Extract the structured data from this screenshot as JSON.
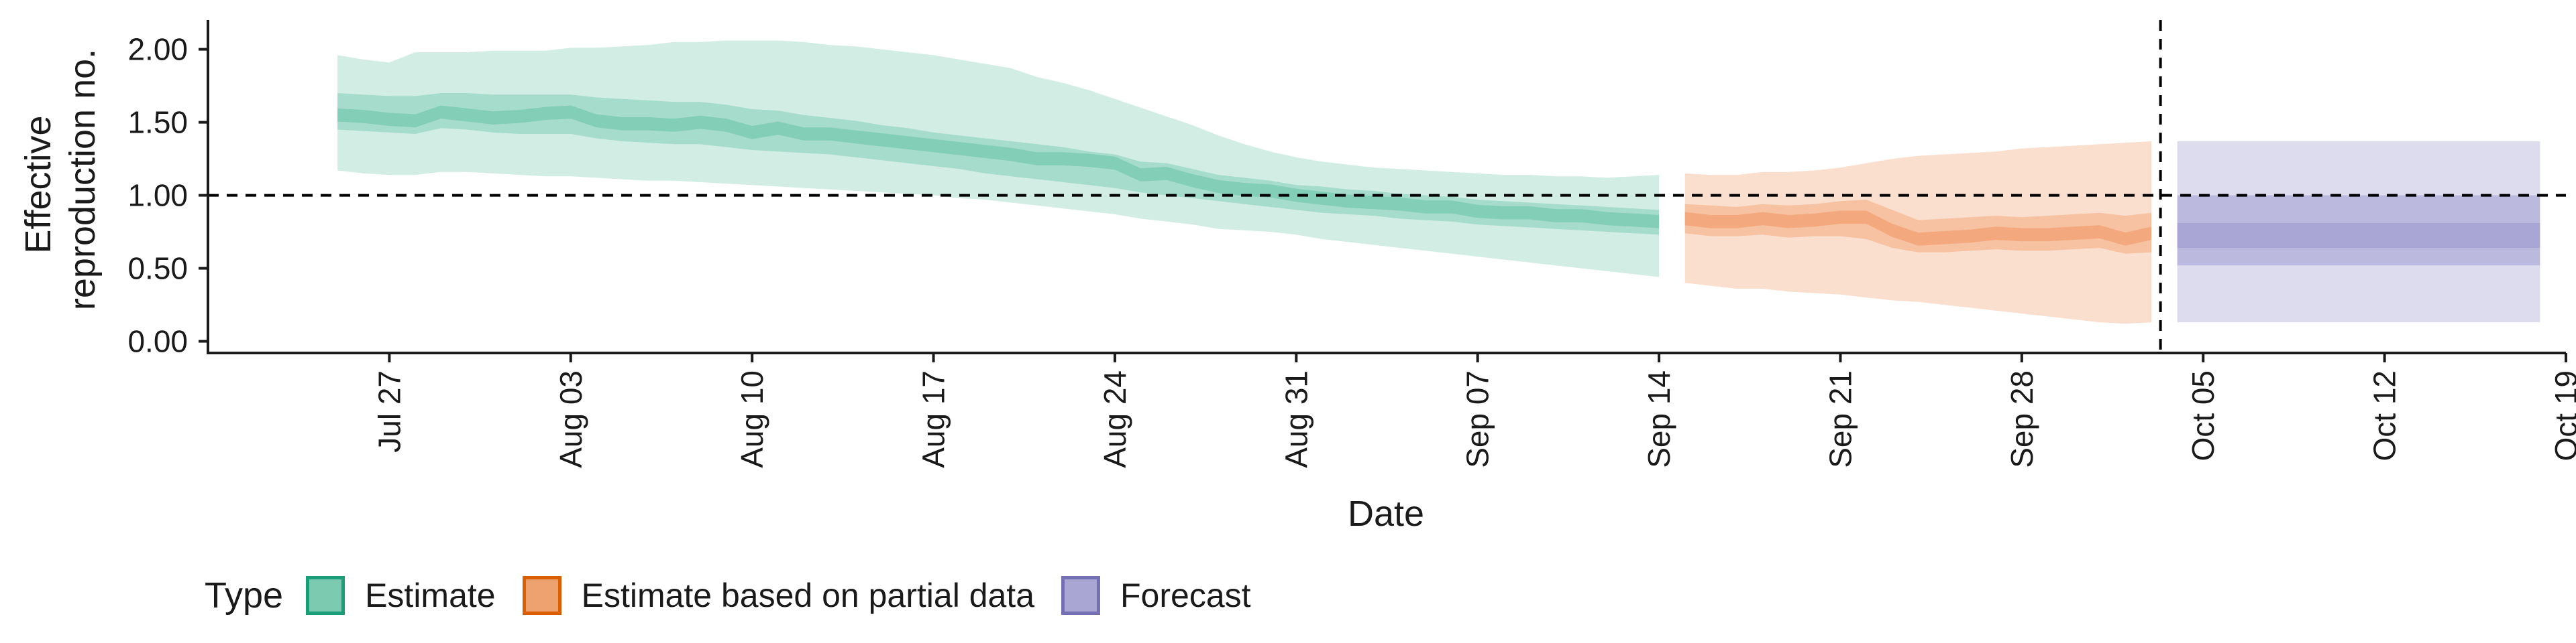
{
  "chart_data": {
    "type": "area",
    "xlabel": "Date",
    "ylabel_lines": [
      "Effective",
      "reproduction no."
    ],
    "ylim": [
      -0.08,
      2.2
    ],
    "yticks": [
      0.0,
      0.5,
      1.0,
      1.5,
      2.0
    ],
    "ytick_labels": [
      "0.00",
      "0.50",
      "1.00",
      "1.50",
      "2.00"
    ],
    "xlim": [
      "2020-07-20",
      "2020-10-19"
    ],
    "xticks": [
      "2020-07-27",
      "2020-08-03",
      "2020-08-10",
      "2020-08-17",
      "2020-08-24",
      "2020-08-31",
      "2020-09-07",
      "2020-09-14",
      "2020-09-21",
      "2020-09-28",
      "2020-10-05",
      "2020-10-12",
      "2020-10-19"
    ],
    "xtick_labels": [
      "Jul 27",
      "Aug 03",
      "Aug 10",
      "Aug 17",
      "Aug 24",
      "Aug 31",
      "Sep 07",
      "Sep 14",
      "Sep 21",
      "Sep 28",
      "Oct 05",
      "Oct 12",
      "Oct 19"
    ],
    "reference_line_y": 1.0,
    "forecast_divider_date": "2020-10-04",
    "legend_title": "Type",
    "series": [
      {
        "name": "Estimate",
        "color_fill": "#66c2a5",
        "color_border": "#1b9e77",
        "dates": [
          "2020-07-25",
          "2020-07-26",
          "2020-07-27",
          "2020-07-28",
          "2020-07-29",
          "2020-07-30",
          "2020-07-31",
          "2020-08-01",
          "2020-08-02",
          "2020-08-03",
          "2020-08-04",
          "2020-08-05",
          "2020-08-06",
          "2020-08-07",
          "2020-08-08",
          "2020-08-09",
          "2020-08-10",
          "2020-08-11",
          "2020-08-12",
          "2020-08-13",
          "2020-08-14",
          "2020-08-15",
          "2020-08-16",
          "2020-08-17",
          "2020-08-18",
          "2020-08-19",
          "2020-08-20",
          "2020-08-21",
          "2020-08-22",
          "2020-08-23",
          "2020-08-24",
          "2020-08-25",
          "2020-08-26",
          "2020-08-27",
          "2020-08-28",
          "2020-08-29",
          "2020-08-30",
          "2020-08-31",
          "2020-09-01",
          "2020-09-02",
          "2020-09-03",
          "2020-09-04",
          "2020-09-05",
          "2020-09-06",
          "2020-09-07",
          "2020-09-08",
          "2020-09-09",
          "2020-09-10",
          "2020-09-11",
          "2020-09-12",
          "2020-09-13",
          "2020-09-14"
        ],
        "median": [
          1.55,
          1.54,
          1.52,
          1.51,
          1.57,
          1.55,
          1.53,
          1.54,
          1.56,
          1.57,
          1.51,
          1.49,
          1.49,
          1.48,
          1.5,
          1.48,
          1.43,
          1.46,
          1.42,
          1.42,
          1.4,
          1.38,
          1.36,
          1.34,
          1.32,
          1.3,
          1.28,
          1.25,
          1.25,
          1.24,
          1.22,
          1.14,
          1.15,
          1.1,
          1.06,
          1.04,
          1.03,
          1.0,
          0.98,
          0.96,
          0.95,
          0.94,
          0.92,
          0.92,
          0.89,
          0.88,
          0.88,
          0.86,
          0.86,
          0.84,
          0.83,
          0.82
        ],
        "lower_50": [
          1.45,
          1.44,
          1.43,
          1.42,
          1.46,
          1.45,
          1.43,
          1.42,
          1.42,
          1.42,
          1.39,
          1.37,
          1.36,
          1.35,
          1.35,
          1.33,
          1.31,
          1.3,
          1.29,
          1.28,
          1.26,
          1.24,
          1.22,
          1.2,
          1.18,
          1.15,
          1.13,
          1.11,
          1.09,
          1.07,
          1.05,
          1.02,
          1.0,
          0.98,
          0.96,
          0.94,
          0.92,
          0.9,
          0.88,
          0.87,
          0.86,
          0.84,
          0.83,
          0.82,
          0.8,
          0.79,
          0.78,
          0.77,
          0.76,
          0.75,
          0.74,
          0.73
        ],
        "upper_50": [
          1.7,
          1.69,
          1.68,
          1.68,
          1.7,
          1.7,
          1.69,
          1.69,
          1.69,
          1.69,
          1.67,
          1.66,
          1.65,
          1.64,
          1.64,
          1.62,
          1.59,
          1.58,
          1.55,
          1.53,
          1.51,
          1.48,
          1.46,
          1.43,
          1.41,
          1.39,
          1.37,
          1.35,
          1.33,
          1.3,
          1.28,
          1.23,
          1.22,
          1.18,
          1.14,
          1.12,
          1.1,
          1.07,
          1.06,
          1.04,
          1.03,
          1.01,
          1.0,
          0.99,
          0.97,
          0.96,
          0.95,
          0.94,
          0.93,
          0.92,
          0.91,
          0.9
        ],
        "lower_90": [
          1.17,
          1.15,
          1.14,
          1.14,
          1.16,
          1.16,
          1.15,
          1.14,
          1.13,
          1.13,
          1.12,
          1.11,
          1.1,
          1.1,
          1.09,
          1.08,
          1.07,
          1.06,
          1.05,
          1.04,
          1.03,
          1.02,
          1.01,
          1.0,
          0.98,
          0.97,
          0.95,
          0.93,
          0.91,
          0.89,
          0.87,
          0.84,
          0.82,
          0.8,
          0.77,
          0.76,
          0.75,
          0.73,
          0.7,
          0.68,
          0.66,
          0.64,
          0.62,
          0.6,
          0.58,
          0.56,
          0.54,
          0.52,
          0.5,
          0.48,
          0.46,
          0.44
        ],
        "upper_90": [
          1.96,
          1.93,
          1.91,
          1.98,
          1.98,
          1.98,
          1.99,
          1.99,
          1.99,
          2.01,
          2.01,
          2.02,
          2.03,
          2.05,
          2.05,
          2.06,
          2.06,
          2.06,
          2.05,
          2.03,
          2.02,
          2.0,
          1.98,
          1.96,
          1.93,
          1.9,
          1.87,
          1.81,
          1.77,
          1.72,
          1.66,
          1.6,
          1.54,
          1.48,
          1.41,
          1.35,
          1.3,
          1.26,
          1.23,
          1.21,
          1.19,
          1.18,
          1.17,
          1.16,
          1.15,
          1.14,
          1.14,
          1.13,
          1.13,
          1.12,
          1.13,
          1.14
        ]
      },
      {
        "name": "Estimate based on partial data",
        "color_fill": "#f0955f",
        "color_border": "#d95f02",
        "dates": [
          "2020-09-15",
          "2020-09-16",
          "2020-09-17",
          "2020-09-18",
          "2020-09-19",
          "2020-09-20",
          "2020-09-21",
          "2020-09-22",
          "2020-09-23",
          "2020-09-24",
          "2020-09-25",
          "2020-09-26",
          "2020-09-27",
          "2020-09-28",
          "2020-09-29",
          "2020-09-30",
          "2020-10-01",
          "2020-10-02",
          "2020-10-03"
        ],
        "median": [
          0.84,
          0.82,
          0.82,
          0.84,
          0.82,
          0.83,
          0.85,
          0.85,
          0.76,
          0.7,
          0.71,
          0.72,
          0.74,
          0.73,
          0.73,
          0.74,
          0.75,
          0.7,
          0.74
        ],
        "lower_50": [
          0.74,
          0.72,
          0.72,
          0.73,
          0.71,
          0.72,
          0.72,
          0.7,
          0.64,
          0.61,
          0.61,
          0.62,
          0.63,
          0.62,
          0.62,
          0.63,
          0.64,
          0.6,
          0.61
        ],
        "upper_50": [
          0.94,
          0.93,
          0.92,
          0.94,
          0.93,
          0.94,
          0.96,
          0.97,
          0.9,
          0.83,
          0.84,
          0.85,
          0.86,
          0.85,
          0.86,
          0.87,
          0.88,
          0.86,
          0.88
        ],
        "lower_90": [
          0.4,
          0.38,
          0.36,
          0.36,
          0.34,
          0.33,
          0.32,
          0.3,
          0.28,
          0.27,
          0.25,
          0.23,
          0.21,
          0.19,
          0.17,
          0.15,
          0.13,
          0.12,
          0.13
        ],
        "upper_90": [
          1.15,
          1.14,
          1.14,
          1.16,
          1.16,
          1.17,
          1.19,
          1.22,
          1.25,
          1.27,
          1.28,
          1.29,
          1.3,
          1.32,
          1.33,
          1.34,
          1.35,
          1.36,
          1.37
        ]
      },
      {
        "name": "Forecast",
        "color_fill": "#8d87c6",
        "color_border": "#7570b3",
        "dates": [
          "2020-10-04",
          "2020-10-18"
        ],
        "lower_50": [
          0.52,
          0.52
        ],
        "upper_50": [
          1.0,
          1.0
        ],
        "lower_20": [
          0.64,
          0.64
        ],
        "upper_20": [
          0.81,
          0.81
        ],
        "lower_90": [
          0.13,
          0.13
        ],
        "upper_90": [
          1.37,
          1.37
        ]
      }
    ]
  }
}
